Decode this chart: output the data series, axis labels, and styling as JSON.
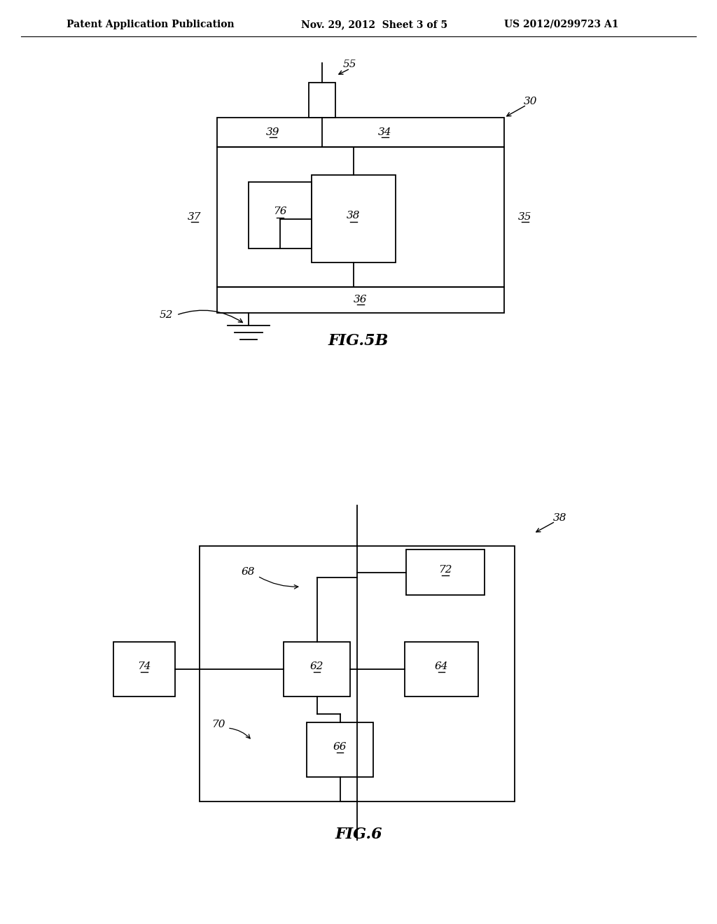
{
  "bg_color": "#ffffff",
  "header_text": "Patent Application Publication",
  "header_date": "Nov. 29, 2012  Sheet 3 of 5",
  "header_patent": "US 2012/0299723 A1",
  "fig5b_title": "FIG.5B",
  "fig6_title": "FIG.6",
  "lw": 1.3,
  "font_size": 11
}
